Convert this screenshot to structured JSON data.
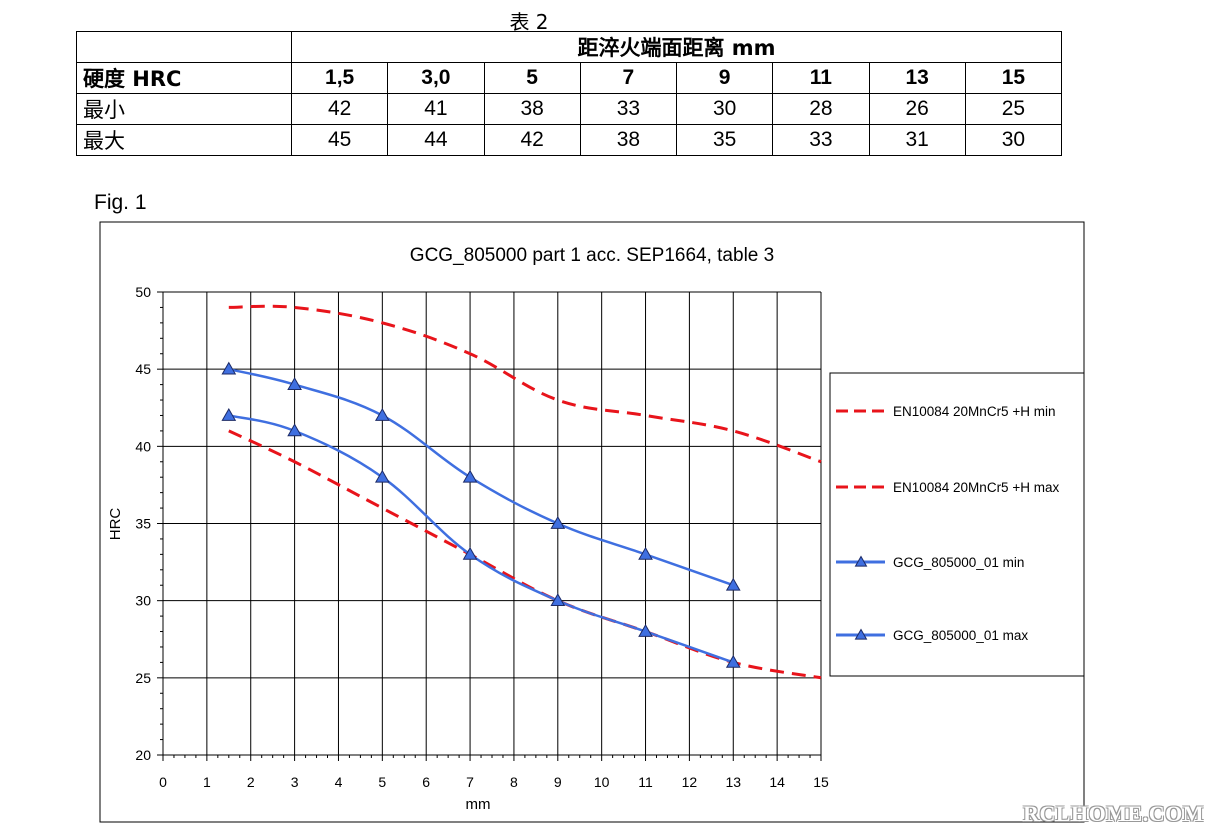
{
  "table": {
    "caption": "表 2",
    "span_header": "距淬火端面距离  mm",
    "header_label": "硬度  HRC",
    "distances": [
      "1,5",
      "3,0",
      "5",
      "7",
      "9",
      "11",
      "13",
      "15"
    ],
    "rows": [
      {
        "label": "最小",
        "values": [
          "42",
          "41",
          "38",
          "33",
          "30",
          "28",
          "26",
          "25"
        ]
      },
      {
        "label": "最大",
        "values": [
          "45",
          "44",
          "42",
          "38",
          "35",
          "33",
          "31",
          "30"
        ]
      }
    ]
  },
  "figure_label": "Fig. 1",
  "chart_data": {
    "type": "line",
    "title": "GCG_805000 part 1 acc. SEP1664, table 3",
    "xlabel": "mm",
    "ylabel": "HRC",
    "xlim": [
      0,
      15
    ],
    "ylim": [
      20,
      50
    ],
    "xticks": [
      0,
      1,
      2,
      3,
      4,
      5,
      6,
      7,
      8,
      9,
      10,
      11,
      12,
      13,
      14,
      15
    ],
    "yticks": [
      20,
      25,
      30,
      35,
      40,
      45,
      50
    ],
    "grid": true,
    "legend_position": "right",
    "series": [
      {
        "name": "EN10084 20MnCr5 +H min",
        "style": "dashed",
        "color": "#e8141b",
        "x": [
          1.5,
          3,
          5,
          7,
          9,
          11,
          13,
          15
        ],
        "y": [
          41,
          39,
          36,
          33,
          30,
          28,
          26,
          25
        ]
      },
      {
        "name": "EN10084 20MnCr5 +H max",
        "style": "dashed",
        "color": "#e8141b",
        "x": [
          1.5,
          3,
          5,
          7,
          9,
          11,
          13,
          15
        ],
        "y": [
          49,
          49,
          48,
          46,
          43,
          42,
          41,
          39
        ]
      },
      {
        "name": "GCG_805000_01 min",
        "style": "solid-triangle",
        "color": "#3f6fe0",
        "x": [
          1.5,
          3,
          5,
          7,
          9,
          11,
          13
        ],
        "y": [
          42,
          41,
          38,
          33,
          30,
          28,
          26
        ]
      },
      {
        "name": "GCG_805000_01 max",
        "style": "solid-triangle",
        "color": "#3f6fe0",
        "x": [
          1.5,
          3,
          5,
          7,
          9,
          11,
          13
        ],
        "y": [
          45,
          44,
          42,
          38,
          35,
          33,
          31
        ]
      }
    ]
  },
  "watermark": "RCLHOME.COM"
}
